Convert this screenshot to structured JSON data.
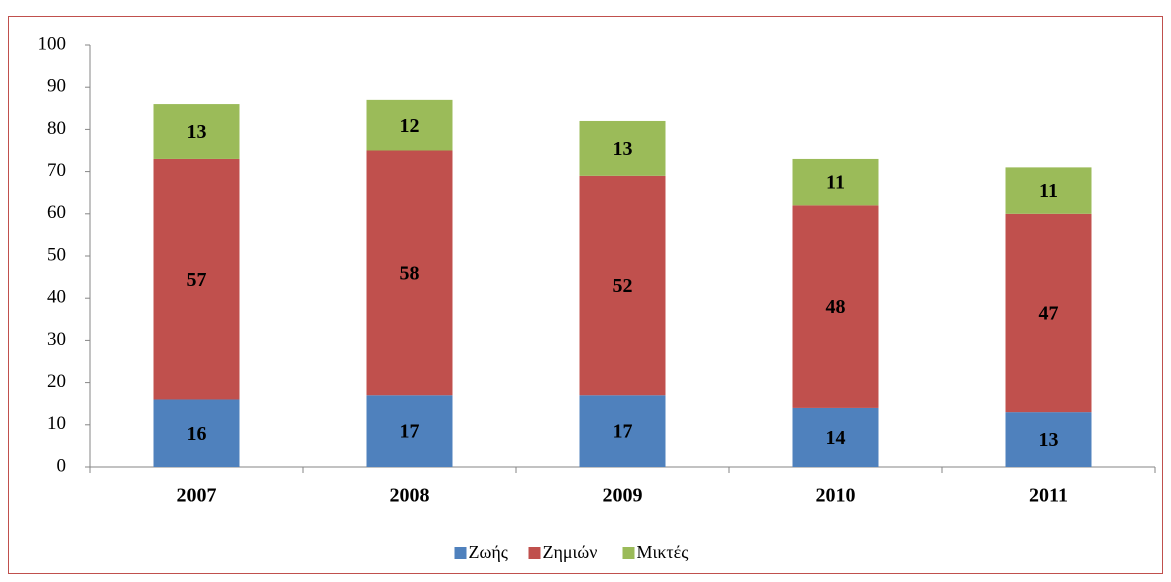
{
  "chart_data": {
    "type": "stacked_bar",
    "categories": [
      "2007",
      "2008",
      "2009",
      "2010",
      "2011"
    ],
    "series": [
      {
        "name": "Ζωής",
        "color": "#4f81bd",
        "values": [
          16,
          17,
          17,
          14,
          13
        ]
      },
      {
        "name": "Ζημιών",
        "color": "#c0504d",
        "values": [
          57,
          58,
          52,
          48,
          47
        ]
      },
      {
        "name": "Μικτές",
        "color": "#9bbb59",
        "values": [
          13,
          12,
          13,
          11,
          11
        ]
      }
    ],
    "ylim": [
      0,
      100
    ],
    "yticks": [
      0,
      10,
      20,
      30,
      40,
      50,
      60,
      70,
      80,
      90,
      100
    ],
    "grid": false,
    "legend": "bottom"
  }
}
